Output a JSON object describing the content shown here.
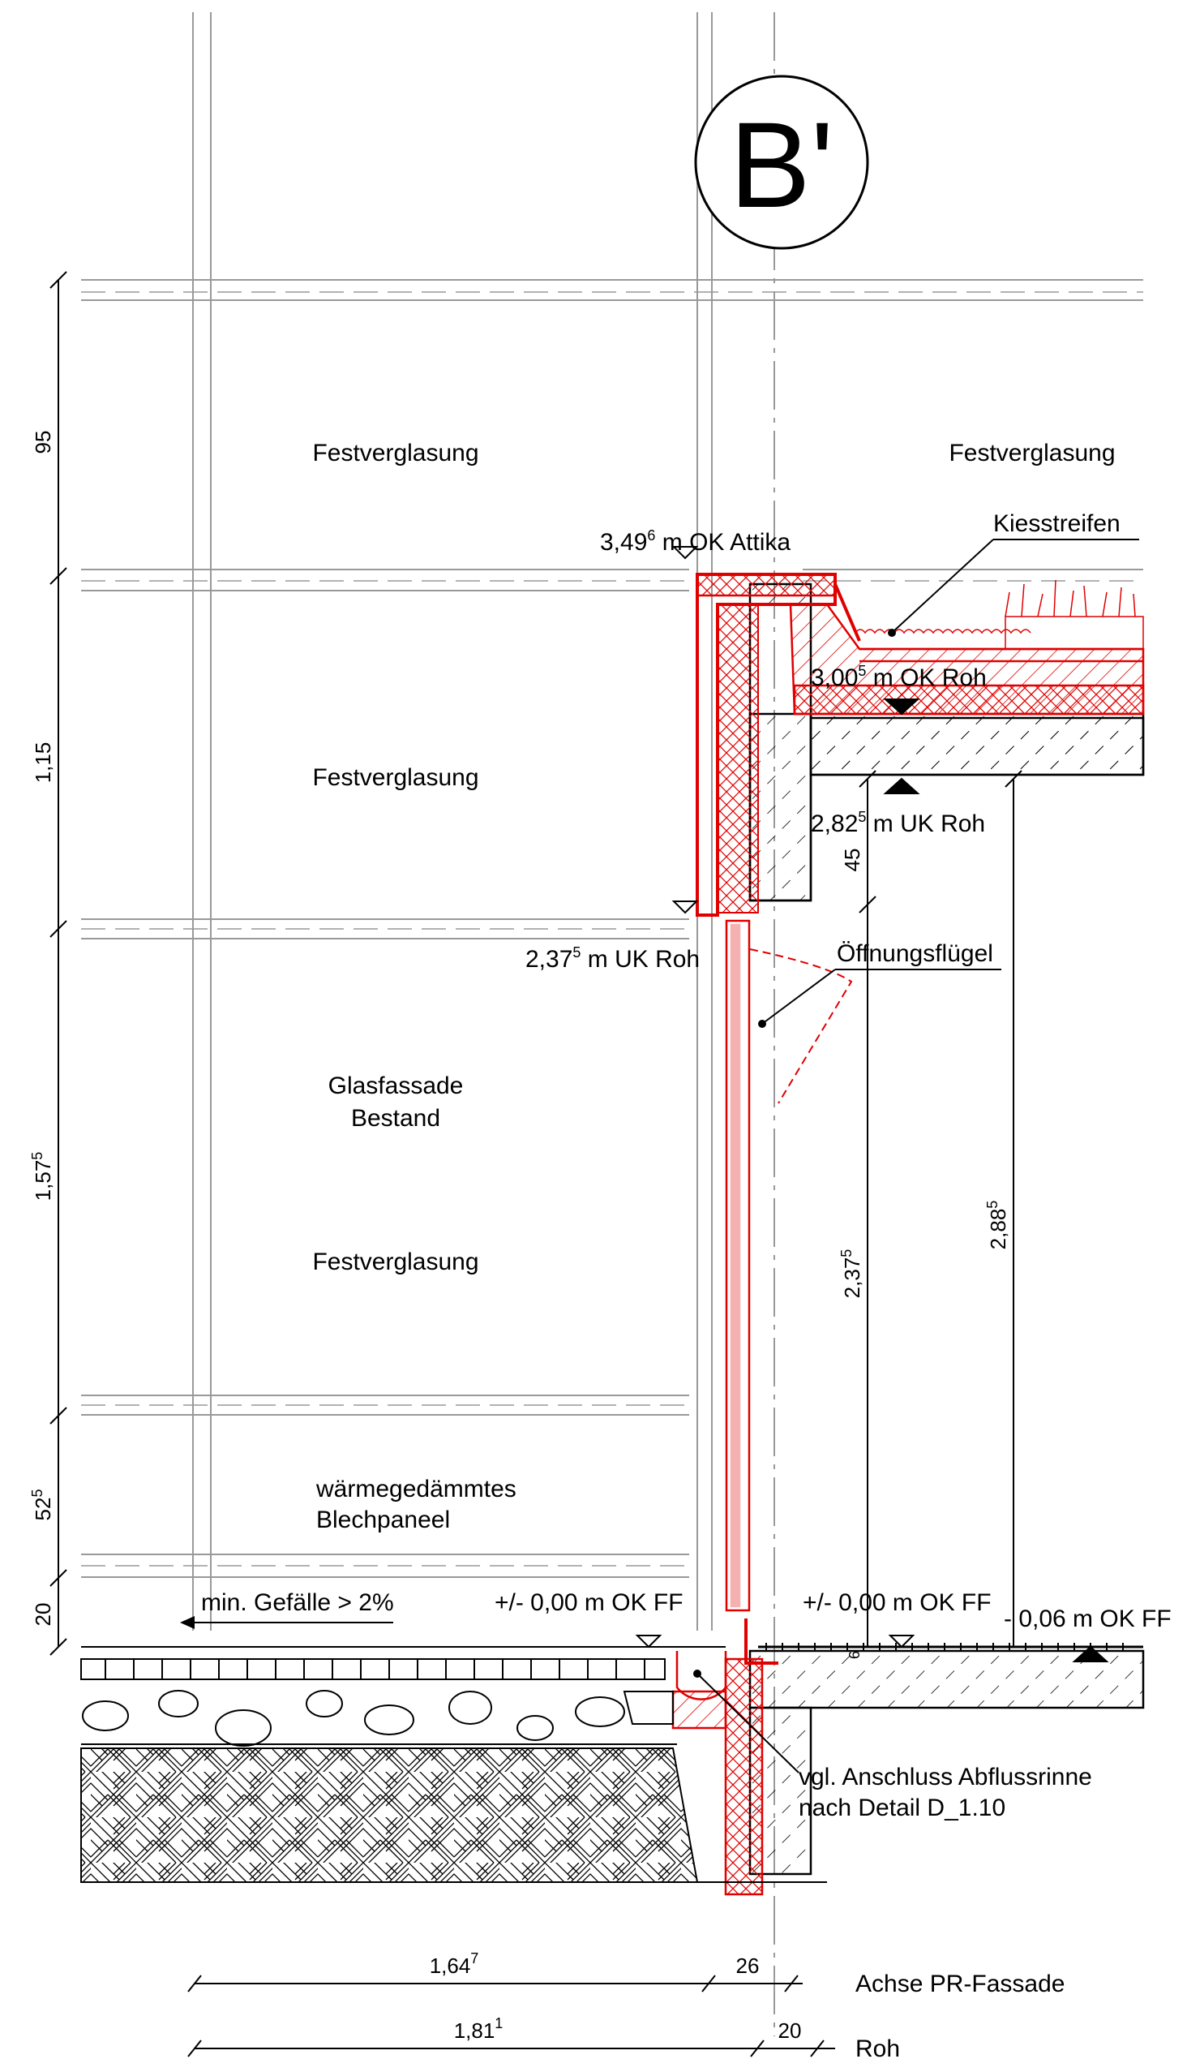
{
  "section_mark": "B'",
  "labels": {
    "festverglasung_top_left": "Festverglasung",
    "festverglasung_top_right": "Festverglasung",
    "festverglasung_mid": "Festverglasung",
    "glasfassade_1": "Glasfassade",
    "glasfassade_2": "Bestand",
    "festverglasung_low": "Festverglasung",
    "panel_1": "wärmegedämmtes",
    "panel_2": "Blechpaneel",
    "kiesstreifen": "Kiesstreifen",
    "oeffnungsfluegel": "Öffnungsflügel",
    "gefaelle": "min. Gefälle > 2%",
    "anschluss_1": "vgl. Anschluss Abflussrinne",
    "anschluss_2": "nach Detail D_1.10",
    "achse": "Achse PR-Fassade",
    "roh": "Roh"
  },
  "levels": {
    "ok_attika_main": "3,49",
    "ok_attika_sup": "6",
    "ok_attika_tail": " m OK Attika",
    "ok_roh_main": "3,00",
    "ok_roh_sup": "5",
    "ok_roh_tail": " m OK Roh",
    "uk_roh_right_main": "2,82",
    "uk_roh_right_sup": "5",
    "uk_roh_right_tail": " m UK Roh",
    "uk_roh_left_main": "2,37",
    "uk_roh_left_sup": "5",
    "uk_roh_left_tail": " m UK Roh",
    "ff_left": "+/- 0,00 m OK FF",
    "ff_right": "+/- 0,00 m OK FF",
    "ff_minus": "- 0,06 m OK FF"
  },
  "dimensions": {
    "left_95": "95",
    "left_115": "1,15",
    "left_157_main": "1,57",
    "left_157_sup": "5",
    "left_52_main": "52",
    "left_52_sup": "5",
    "left_20": "20",
    "d45": "45",
    "d237_main": "2,37",
    "d237_sup": "5",
    "d288_main": "2,88",
    "d288_sup": "5",
    "d6": "6",
    "b164_main": "1,64",
    "b164_sup": "7",
    "b26": "26",
    "b181_main": "1,81",
    "b181_sup": "1",
    "b20": "20"
  }
}
